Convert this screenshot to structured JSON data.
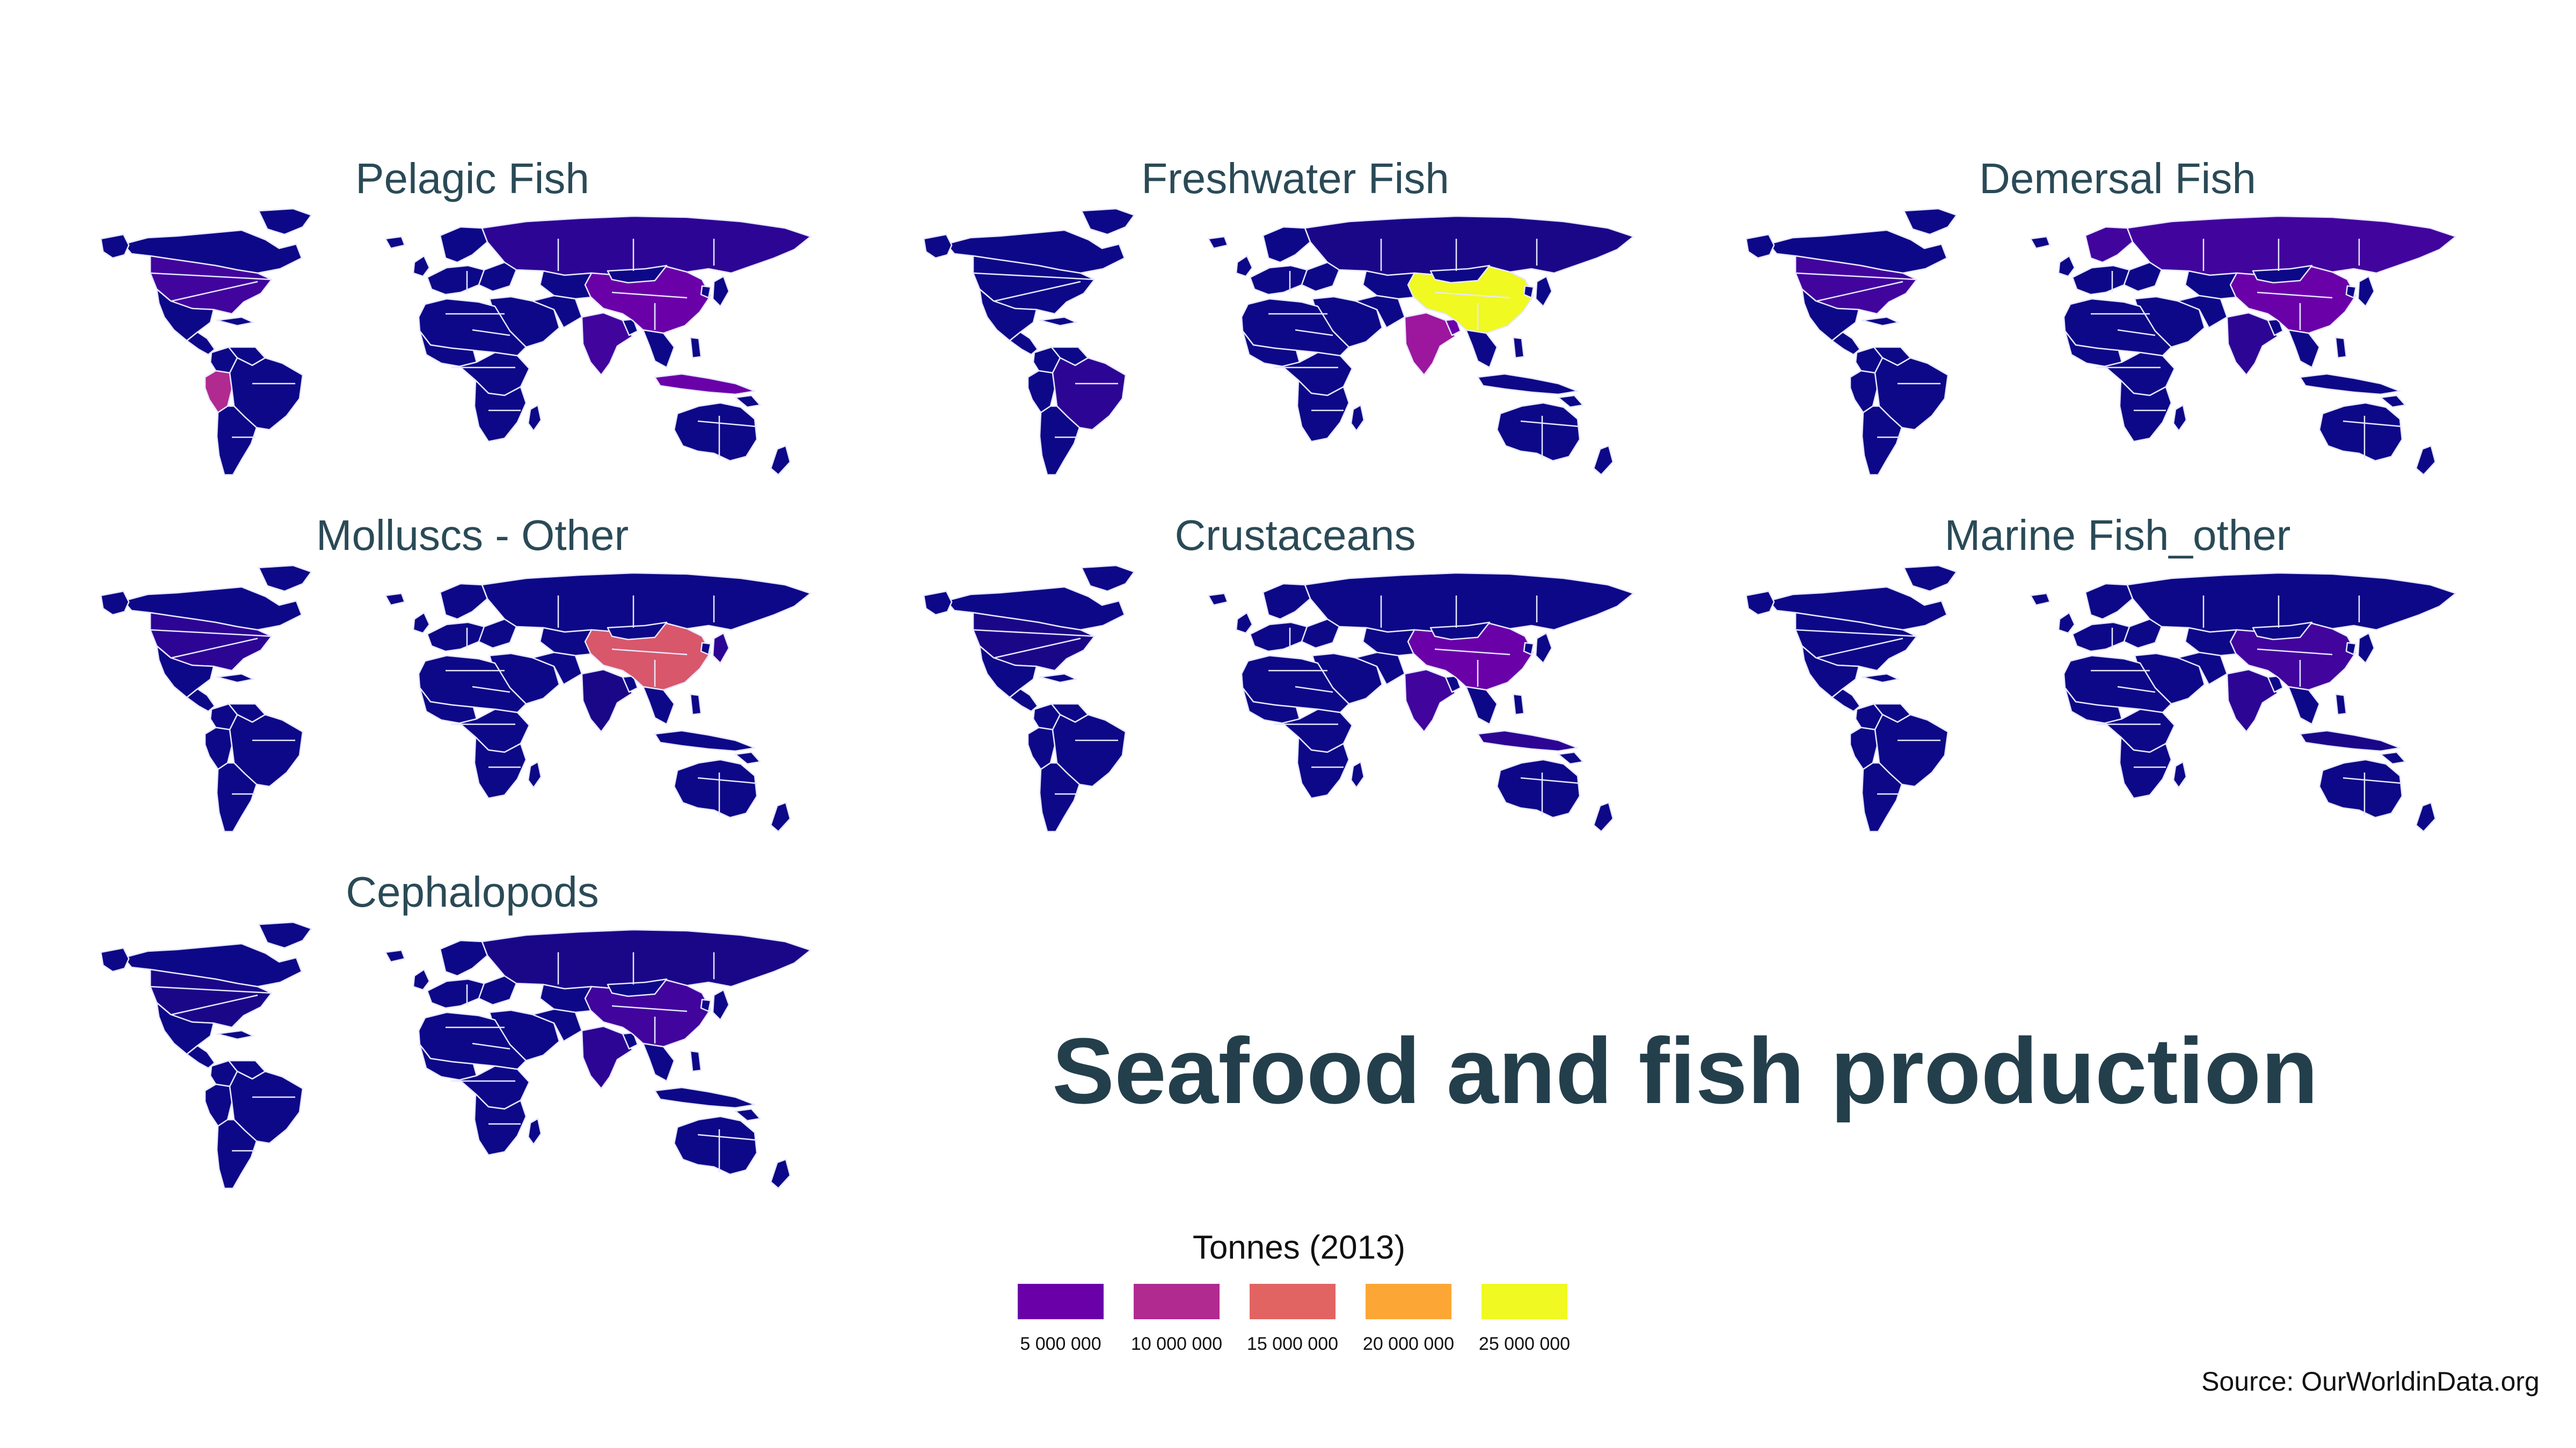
{
  "title": "Seafood and fish production",
  "source": "Source: OurWorldinData.org",
  "legend": {
    "title": "Tonnes (2013)",
    "items": [
      {
        "label": "5 000 000",
        "color": "#6a00a8"
      },
      {
        "label": "10 000 000",
        "color": "#b12a90"
      },
      {
        "label": "15 000 000",
        "color": "#e16462"
      },
      {
        "label": "20 000 000",
        "color": "#fca636"
      },
      {
        "label": "25 000 000",
        "color": "#f0f921"
      }
    ]
  },
  "colors": {
    "base": "#0d0887",
    "low": "#2c0594",
    "mid_low": "#41049d",
    "mid": "#6a00a8",
    "magenta": "#9c179e",
    "pink": "#b12a90",
    "salmon": "#d8576b",
    "yellow": "#f0f921"
  },
  "panels": [
    {
      "title": "Pelagic Fish",
      "highlights": {
        "china": "#6a00a8",
        "peru": "#b12a90",
        "usa": "#41049d",
        "russia": "#2c0594",
        "india": "#41049d",
        "indonesia": "#6a00a8"
      }
    },
    {
      "title": "Freshwater Fish",
      "highlights": {
        "china": "#f0f921",
        "india": "#9c179e",
        "bangladesh": "#6a00a8",
        "brazil": "#2c0594",
        "russia": "#1a0788"
      }
    },
    {
      "title": "Demersal Fish",
      "highlights": {
        "russia": "#41049d",
        "china": "#6a00a8",
        "usa": "#41049d",
        "norway": "#41049d",
        "india": "#2c0594"
      }
    },
    {
      "title": "Molluscs - Other",
      "highlights": {
        "china": "#d8576b",
        "usa": "#2c0594",
        "japan": "#2c0594",
        "india": "#1a0788"
      }
    },
    {
      "title": "Crustaceans",
      "highlights": {
        "china": "#6a00a8",
        "india": "#41049d",
        "indonesia": "#2c0594",
        "usa": "#1a0788"
      }
    },
    {
      "title": "Marine Fish_other",
      "highlights": {
        "china": "#41049d",
        "india": "#2c0594",
        "indonesia": "#1a0788"
      }
    },
    {
      "title": "Cephalopods",
      "highlights": {
        "china": "#41049d",
        "india": "#2c0594",
        "russia": "#1a0788",
        "usa": "#1a0788"
      }
    }
  ]
}
